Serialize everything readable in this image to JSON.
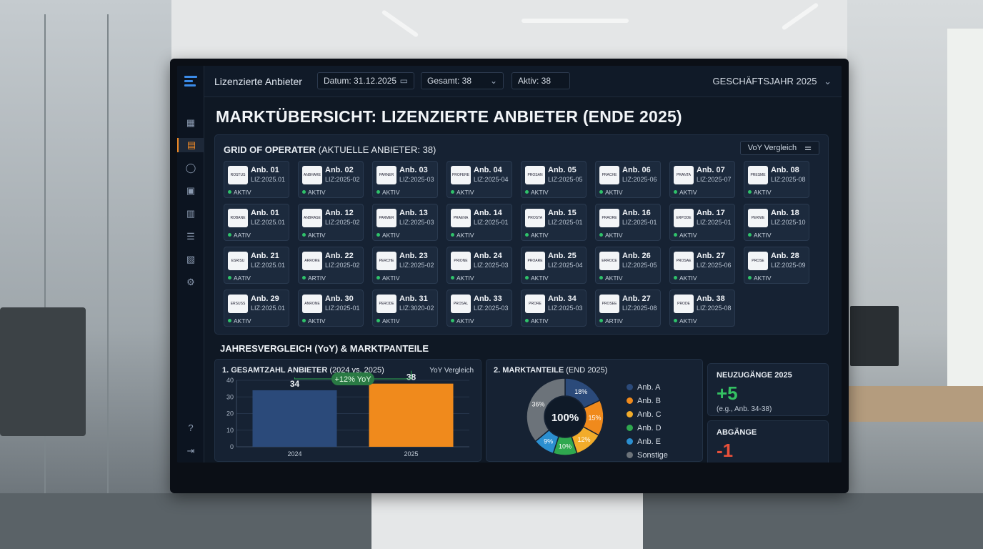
{
  "app": {
    "title": "Lizenzierte Anbieter"
  },
  "toolbar": {
    "date_label": "Datum: 31.12.2025",
    "total_label": "Gesamt: 38",
    "active_label": "Aktiv: 38",
    "fiscal_year_label": "GESCHÄFTSJAHR 2025"
  },
  "page": {
    "heading": "MARKTÜBERSICHT: LIZENZIERTE ANBIETER (ENDE 2025)"
  },
  "grid": {
    "title_bold": "GRID OF OPERATER",
    "title_rest": " (AKTUELLE ANBIETER: 38)",
    "yoy_button": "VoY Vergleich",
    "rows": [
      [
        {
          "name": "Anb. 01",
          "lic": "LIZ:2025.01",
          "status": "AKTIV",
          "logo": "ROSTUS"
        },
        {
          "name": "Anb. 02",
          "lic": "LIZ:2025-02",
          "status": "AKTIV",
          "logo": "ANBHARE"
        },
        {
          "name": "Anb. 03",
          "lic": "LIZ:2025-03",
          "status": "AKTIV",
          "logo": "PARNER"
        },
        {
          "name": "Anb. 04",
          "lic": "LIZ:2025-04",
          "status": "AKTIV",
          "logo": "PROFERE"
        },
        {
          "name": "Anb. 05",
          "lic": "LIZ:2025-05",
          "status": "AKTIV",
          "logo": "PROSAN"
        },
        {
          "name": "Anb. 06",
          "lic": "LIZ:2025-06",
          "status": "AKTIV",
          "logo": "PRACHE"
        },
        {
          "name": "Anb. 07",
          "lic": "LIZ:2025-07",
          "status": "AKTIV",
          "logo": "PRANTA"
        },
        {
          "name": "Anb. 08",
          "lic": "LIZ:2025-08",
          "status": "AKTIV",
          "logo": "PRESME"
        }
      ],
      [
        {
          "name": "Anb. 01",
          "lic": "LIZ:2025.01",
          "status": "AATIV",
          "logo": "ROBANE"
        },
        {
          "name": "Anb. 12",
          "lic": "LIZ:2025-02",
          "status": "AKTIV",
          "logo": "ANBRASE"
        },
        {
          "name": "Anb. 13",
          "lic": "LIZ:2025-03",
          "status": "AKTIV",
          "logo": "PARMER"
        },
        {
          "name": "Anb. 14",
          "lic": "LIZ:2025-01",
          "status": "AKTIV",
          "logo": "PRAENA"
        },
        {
          "name": "Anb. 15",
          "lic": "LIZ:2025-01",
          "status": "AKTIV",
          "logo": "PROSTA"
        },
        {
          "name": "Anb. 16",
          "lic": "LIZ:2025-01",
          "status": "AKTIV",
          "logo": "PRAORE"
        },
        {
          "name": "Anb. 17",
          "lic": "LIZ:2025-01",
          "status": "AKTIV",
          "logo": "ERPODE"
        },
        {
          "name": "Anb. 18",
          "lic": "LIZ:2025-10",
          "status": "AKTIV",
          "logo": "PERNIE"
        }
      ],
      [
        {
          "name": "Anb. 21",
          "lic": "LIZ:2025.01",
          "status": "AATIV",
          "logo": "ESRISU"
        },
        {
          "name": "Anb. 22",
          "lic": "LIZ:2025-02",
          "status": "ARTIV",
          "logo": "ARRORE"
        },
        {
          "name": "Anb. 23",
          "lic": "LIZ:2025-02",
          "status": "AKTIV",
          "logo": "PERCHE"
        },
        {
          "name": "Anb. 24",
          "lic": "LIZ:2025-03",
          "status": "AKTIV",
          "logo": "PRIONE"
        },
        {
          "name": "Anb. 25",
          "lic": "LIZ:2025-04",
          "status": "AKTIV",
          "logo": "PROARE"
        },
        {
          "name": "Anb. 26",
          "lic": "LIZ:2025-05",
          "status": "AKTIV",
          "logo": "ERROCE"
        },
        {
          "name": "Anb. 27",
          "lic": "LIZ:2025-06",
          "status": "AKTIV",
          "logo": "PROSAE"
        },
        {
          "name": "Anb. 28",
          "lic": "LIZ:2025-09",
          "status": "AKTIV",
          "logo": "PROSE"
        }
      ],
      [
        {
          "name": "Anb. 29",
          "lic": "LIZ:2025.01",
          "status": "AKTIV",
          "logo": "ERSUSS"
        },
        {
          "name": "Anb. 30",
          "lic": "LIZ:2025-01",
          "status": "AKTIV",
          "logo": "ANRONE"
        },
        {
          "name": "Anb. 31",
          "lic": "LIZ:3020-02",
          "status": "AKTIV",
          "logo": "PERODE"
        },
        {
          "name": "Anb. 33",
          "lic": "LIZ:2025-03",
          "status": "AKTIV",
          "logo": "PROSAL"
        },
        {
          "name": "Anb. 34",
          "lic": "LIZ:2025-03",
          "status": "AKTIV",
          "logo": "PRORE"
        },
        {
          "name": "Anb. 27",
          "lic": "LIZ:2025-08",
          "status": "ARTIV",
          "logo": "PROSEE"
        },
        {
          "name": "Anb. 38",
          "lic": "LIZ:2025-08",
          "status": "AKTIV",
          "logo": "PRODE"
        }
      ]
    ]
  },
  "comparison": {
    "title": "JAHRESVERGLEICH (YoY) & MARKTPANTEILE"
  },
  "bar_card": {
    "title_bold": "1. GESAMTZAHL ANBIETER",
    "title_rest": " (2024 vs. 2025)",
    "right_label": "YoY Vergleich",
    "change_badge": "+12% YoY"
  },
  "pie_card": {
    "title_bold": "2. MARKTANTEILE",
    "title_rest": " (END 2025)",
    "center_label": "100%"
  },
  "kpi_new": {
    "label": "NEUZUGÄNGE 2025",
    "value": "+5",
    "note": "(e.g., Anb. 34-38)",
    "color": "#34c062"
  },
  "kpi_exits": {
    "label": "ABGÄNGE",
    "value": "-1",
    "color": "#e8503a"
  },
  "chart_data": [
    {
      "type": "bar",
      "categories": [
        "2024",
        "2025"
      ],
      "values": [
        34,
        38
      ],
      "colors": [
        "#2b4a7a",
        "#f08a1c"
      ],
      "ylim": [
        0,
        40
      ],
      "yticks": [
        0,
        10,
        20,
        30,
        40
      ]
    },
    {
      "type": "pie",
      "labels": [
        "Anb. A",
        "Anb. B",
        "Anb. C",
        "Anb. D",
        "Anb. E",
        "Sonstige"
      ],
      "values": [
        18,
        15,
        12,
        10,
        9,
        36
      ],
      "display": [
        "18%",
        "15%",
        "12%",
        "10%",
        "9%",
        "36%"
      ],
      "colors": [
        "#2b4a7a",
        "#f08a1c",
        "#f2ac2a",
        "#2fa84f",
        "#2b8fd0",
        "#6c737a"
      ]
    }
  ]
}
